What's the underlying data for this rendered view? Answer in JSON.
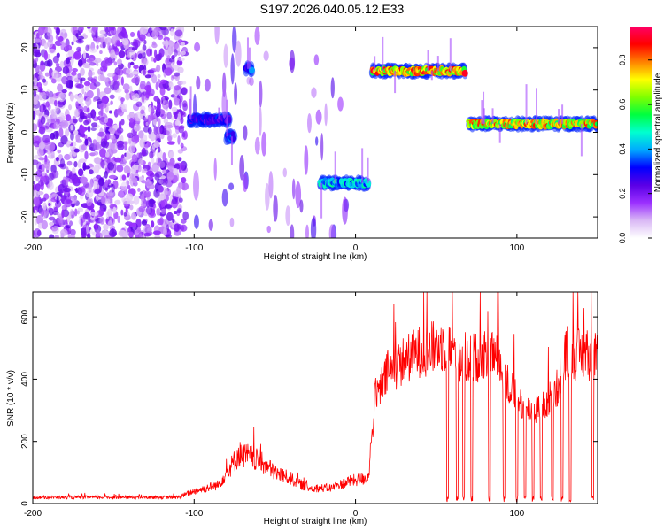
{
  "title": "S197.2026.040.05.12.E33",
  "chart_data": [
    {
      "type": "heatmap",
      "xlabel": "Height of straight line (km)",
      "ylabel": "Frequency (Hz)",
      "xlim": [
        -200,
        150
      ],
      "ylim": [
        -25,
        25
      ],
      "xticks": [
        -200,
        -100,
        0,
        100
      ],
      "yticks": [
        -20,
        -10,
        0,
        10,
        20
      ],
      "colorbar": {
        "label": "Normalized spectral amplitude",
        "range": [
          0,
          0.95
        ],
        "ticks": [
          0.0,
          0.2,
          0.4,
          0.6,
          0.8
        ],
        "tick_labels": [
          "0.0",
          "0.2",
          "0.4",
          "0.6",
          "0.8"
        ],
        "colors": [
          "#ffffff",
          "#d9b8f5",
          "#9b30ff",
          "#5a00e6",
          "#0000ff",
          "#00aaff",
          "#00ffd0",
          "#00ff40",
          "#80ff00",
          "#ffff00",
          "#ff8000",
          "#ff0000",
          "#ff0066"
        ]
      },
      "features": [
        {
          "x_range": [
            -200,
            -105
          ],
          "freq_range": [
            -25,
            25
          ],
          "amplitude": 0.1,
          "kind": "diffuse noise"
        },
        {
          "x_range": [
            -103,
            -78
          ],
          "freq": 3,
          "amplitude": 0.3,
          "kind": "band"
        },
        {
          "x_range": [
            -80,
            -75
          ],
          "freq": -1,
          "amplitude": 0.35,
          "kind": "band"
        },
        {
          "x_range": [
            -68,
            -64
          ],
          "freq": 15,
          "amplitude": 0.35,
          "kind": "band"
        },
        {
          "x_range": [
            -22,
            8
          ],
          "freq": -12,
          "amplitude": 0.45,
          "kind": "band"
        },
        {
          "x_range": [
            10,
            68
          ],
          "freq": 14.5,
          "amplitude": 0.8,
          "kind": "band"
        },
        {
          "x_range": [
            70,
            150
          ],
          "freq": 2,
          "amplitude": 0.75,
          "kind": "band"
        }
      ]
    },
    {
      "type": "line",
      "xlabel": "Height of straight line (km)",
      "ylabel": "SNR (10 * v/v)",
      "xlim": [
        -200,
        150
      ],
      "ylim": [
        0,
        680
      ],
      "xticks": [
        -200,
        -100,
        0,
        100
      ],
      "yticks": [
        0,
        200,
        400,
        600
      ],
      "color": "#ff0000",
      "envelope": {
        "x": [
          -200,
          -150,
          -110,
          -100,
          -85,
          -72,
          -65,
          -58,
          -50,
          -40,
          -30,
          -15,
          -5,
          5,
          8,
          12,
          20,
          30,
          40,
          55,
          65,
          75,
          85,
          95,
          105,
          115,
          125,
          130,
          140,
          150
        ],
        "y": [
          20,
          20,
          20,
          40,
          60,
          160,
          150,
          130,
          100,
          80,
          50,
          50,
          70,
          80,
          90,
          330,
          420,
          460,
          490,
          510,
          470,
          470,
          490,
          380,
          300,
          300,
          370,
          480,
          480,
          470
        ]
      },
      "dips": [
        57,
        63,
        67,
        72,
        83,
        92,
        100,
        105,
        110,
        115,
        122,
        128,
        133,
        147
      ]
    }
  ]
}
